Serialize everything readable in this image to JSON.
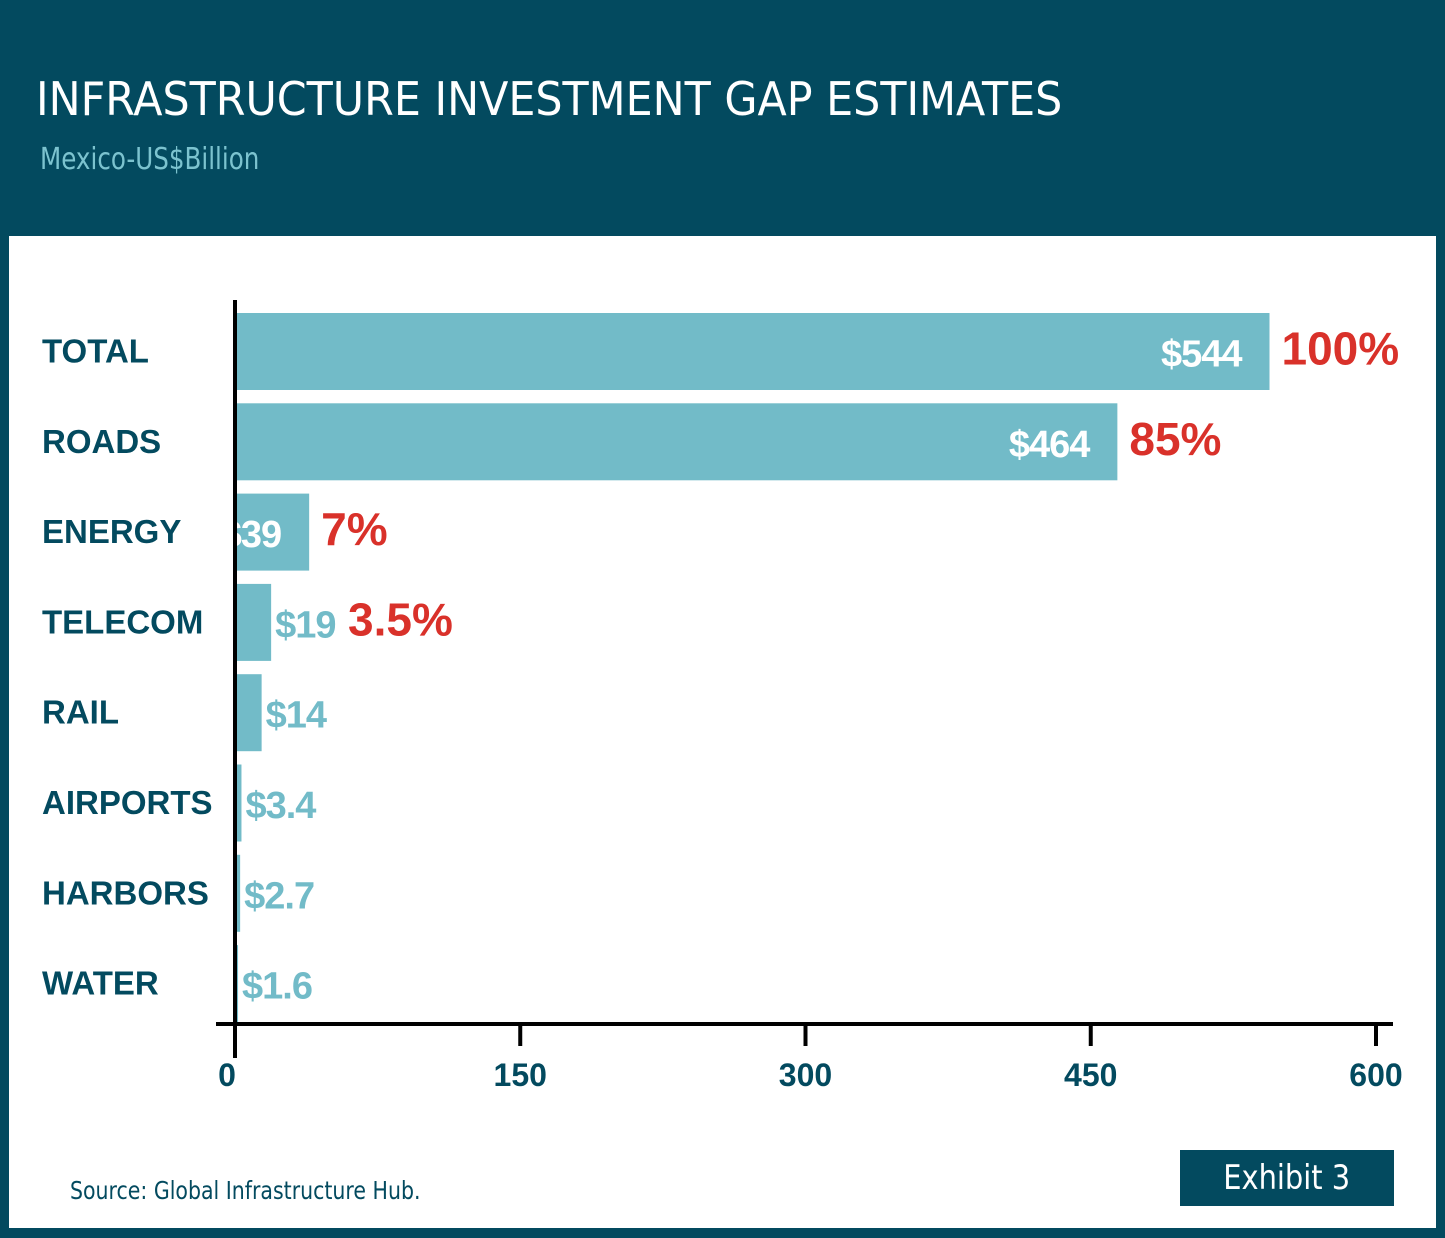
{
  "header": {
    "title": "INFRASTRUCTURE INVESTMENT GAP ESTIMATES",
    "subtitle": "Mexico-US$Billion"
  },
  "footer": {
    "source": "Source: Global Infrastructure Hub.",
    "exhibit": "Exhibit 3"
  },
  "colors": {
    "background": "#034a5f",
    "bar": "#72bbc8",
    "category_text": "#034a5f",
    "percent_text": "#d9312a",
    "axis": "#000000"
  },
  "chart_data": {
    "type": "bar",
    "orientation": "horizontal",
    "title": "INFRASTRUCTURE INVESTMENT GAP ESTIMATES",
    "subtitle": "Mexico-US$Billion",
    "categories": [
      "TOTAL",
      "ROADS",
      "ENERGY",
      "TELECOM",
      "RAIL",
      "AIRPORTS",
      "HARBORS",
      "WATER"
    ],
    "values": [
      544,
      464,
      39,
      19,
      14,
      3.4,
      2.7,
      1.6
    ],
    "value_labels": [
      "$544",
      "$464",
      "$39",
      "$19",
      "$14",
      "$3.4",
      "$2.7",
      "$1.6"
    ],
    "percent_labels": [
      "100%",
      "85%",
      "7%",
      "3.5%",
      "",
      "",
      "",
      ""
    ],
    "xlim": [
      0,
      600
    ],
    "xticks": [
      "0",
      "150",
      "300",
      "450",
      "600"
    ],
    "grid": false,
    "legend": "none"
  }
}
